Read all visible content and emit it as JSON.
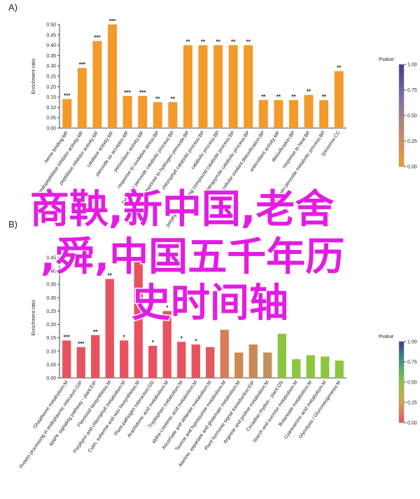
{
  "chart_data": [
    {
      "type": "bar",
      "panel": "A)",
      "ylabel": "Enrichment ratio",
      "categories": [
        "heme binding:MF",
        "endopeptidase inhibitor activity:MF",
        "peptidase inhibitor activity:MF",
        "catalase activity:MF",
        "peroxide as acceptor:MF",
        "peroxidase activity:MF",
        "response to oxidative stress:BP",
        "hydrogen peroxide catabolic process:BP",
        "response to hydrogen peroxide:BP",
        "chlorophyll catabolic process:BP",
        "catabolic process:BP",
        "porphyrin-containing compound catabolic process:BP",
        "tetrapyrrole catabolic process:BP",
        "cellular oxidant detoxification:BP",
        "antioxidant activity:MF",
        "detoxification:BP",
        "response to heat:BP",
        "hydrogen peroxide metabolic process:BP",
        "lysosome:CC"
      ],
      "values": [
        0.14,
        0.29,
        0.42,
        0.5,
        0.155,
        0.155,
        0.125,
        0.125,
        0.4,
        0.4,
        0.4,
        0.4,
        0.4,
        0.135,
        0.135,
        0.135,
        0.16,
        0.135,
        0.275
      ],
      "colors": [
        "#f39a2b",
        "#f39a2b",
        "#f39a2b",
        "#f39a2b",
        "#f39a2b",
        "#f39a2b",
        "#f39a2b",
        "#f39a2b",
        "#f39a2b",
        "#f39a2b",
        "#f39a2b",
        "#f39a2b",
        "#f39a2b",
        "#f39a2b",
        "#f39a2b",
        "#f39a2b",
        "#f39a2b",
        "#f39a2b",
        "#f39a2b"
      ],
      "significance": [
        "***",
        "***",
        "***",
        "***",
        "***",
        "***",
        "**",
        "**",
        "**",
        "**",
        "**",
        "**",
        "**",
        "**",
        "**",
        "**",
        "**",
        "**",
        "**"
      ],
      "ylim": [
        0,
        0.5
      ],
      "yticks": [
        {
          "value": 0,
          "label": "0.00"
        },
        0.05,
        {
          "value": 0.1,
          "label": "0.10"
        },
        0.15,
        {
          "value": 0.2,
          "label": "0.20"
        },
        0.25,
        {
          "value": 0.3,
          "label": "0.30"
        },
        0.35,
        {
          "value": 0.4,
          "label": "0.40"
        },
        0.45,
        {
          "value": 0.5,
          "label": "0.50"
        }
      ],
      "colorbar": {
        "title": "Pvalue",
        "lim": [
          0,
          1
        ],
        "colors": [
          "#f39a2b",
          "#c08a6e",
          "#7f6fa6",
          "#3d3f8e"
        ],
        "ticks": [
          {
            "value": 0,
            "label": "0.00"
          },
          0.25,
          {
            "value": 0.5,
            "label": "0.50"
          },
          0.75,
          {
            "value": 1,
            "label": "1.00"
          }
        ]
      }
    },
    {
      "type": "bar",
      "panel": "B)",
      "ylabel": "Enrichment ratio",
      "categories": [
        "Glutathione metabolism:M",
        "Protein processing in endoplasmic reticulum:GIP",
        "MAPK signaling pathway - plant:EIP",
        "Flavonoid biosynthesis:M",
        "Porphyrin and chlorophyll metabolism:M",
        "Cutin, suberine and wax biosynthesis:M",
        "Plant-pathogen interaction:OS",
        "Arachidonic acid metabolism:M",
        "Tryptophan metabolism:M",
        "alpha-Linolenic acid metabolism:M",
        "Ascorbate and aldarate metabolism:M",
        "Taurine and hypotaurine metabolism:M",
        "Alanine, aspartate and glutamate metabolism:M",
        "Plant hormone signal transduction:EIP",
        "Arginine and proline metabolism:M",
        "Circadian rhythm - plant:OS",
        "Starch and sucrose metabolism:M",
        "Butanoate metabolism:M",
        "Cyanoamino acid metabolism:M",
        "Glycolysis / Gluconeogenesis:M"
      ],
      "values": [
        0.14,
        0.115,
        0.16,
        0.37,
        0.14,
        0.45,
        0.12,
        0.25,
        0.135,
        0.125,
        0.115,
        0.18,
        0.095,
        0.125,
        0.095,
        0.165,
        0.07,
        0.085,
        0.08,
        0.065
      ],
      "colors": [
        "#e8525f",
        "#e8525f",
        "#e8525f",
        "#e8525f",
        "#e8525f",
        "#e8525f",
        "#e8525f",
        "#e8525f",
        "#e8525f",
        "#e8525f",
        "#e05a5a",
        "#d77c5a",
        "#cc8a55",
        "#c98a55",
        "#c0915a",
        "#8cc63f",
        "#8cc63f",
        "#8cc63f",
        "#8cc63f",
        "#8cc63f"
      ],
      "significance": [
        "***",
        "***",
        "**",
        "**",
        "*",
        null,
        "*",
        "*",
        "*",
        "*",
        null,
        null,
        null,
        null,
        null,
        null,
        null,
        null,
        null,
        null
      ],
      "ylim": [
        0,
        0.45
      ],
      "yticks": [
        {
          "value": 0,
          "label": "0.00"
        },
        0.05,
        {
          "value": 0.1,
          "label": "0.10"
        },
        0.15,
        {
          "value": 0.2,
          "label": "0.20"
        },
        0.25,
        {
          "value": 0.3,
          "label": "0.30"
        },
        0.35,
        {
          "value": 0.4,
          "label": "0.40"
        },
        0.45
      ],
      "colorbar": {
        "title": "Pvalue",
        "lim": [
          0,
          1
        ],
        "colors": [
          "#e8525f",
          "#d7a050",
          "#8cc63f",
          "#3a9a8a",
          "#3d3f8e"
        ],
        "ticks": [
          {
            "value": 0,
            "label": "0.00"
          },
          0.25,
          {
            "value": 0.5,
            "label": "0.50"
          },
          0.75,
          {
            "value": 1,
            "label": "1.00"
          }
        ]
      }
    }
  ],
  "overlay_text": [
    "商鞅,新中国,老舍",
    ",舜,中国五千年历",
    "史时间轴"
  ]
}
